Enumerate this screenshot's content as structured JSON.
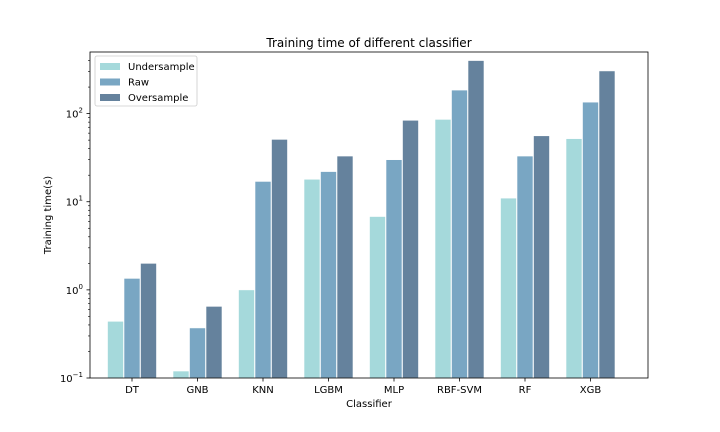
{
  "chart_data": {
    "type": "bar",
    "title": "Training time of different classifier",
    "xlabel": "Classifier",
    "ylabel": "Training time(s)",
    "yscale": "log",
    "ylim": [
      0.1,
      500
    ],
    "yticks": [
      {
        "value": 0.1,
        "base": "10",
        "exp": "−1"
      },
      {
        "value": 1,
        "base": "10",
        "exp": "0"
      },
      {
        "value": 10,
        "base": "10",
        "exp": "1"
      },
      {
        "value": 100,
        "base": "10",
        "exp": "2"
      }
    ],
    "categories": [
      "DT",
      "GNB",
      "KNN",
      "LGBM",
      "MLP",
      "RBF-SVM",
      "RF",
      "XGB"
    ],
    "series": [
      {
        "name": "Undersample",
        "color": "#a5d9db",
        "values": [
          0.44,
          0.12,
          1.0,
          18,
          6.8,
          86,
          11,
          52
        ]
      },
      {
        "name": "Raw",
        "color": "#79a6c3",
        "values": [
          1.35,
          0.37,
          17,
          22,
          30,
          185,
          33,
          135
        ]
      },
      {
        "name": "Oversample",
        "color": "#65829d",
        "values": [
          2.0,
          0.65,
          51,
          33,
          84,
          400,
          56,
          305
        ]
      }
    ],
    "legend": "top-left",
    "grid": false
  }
}
